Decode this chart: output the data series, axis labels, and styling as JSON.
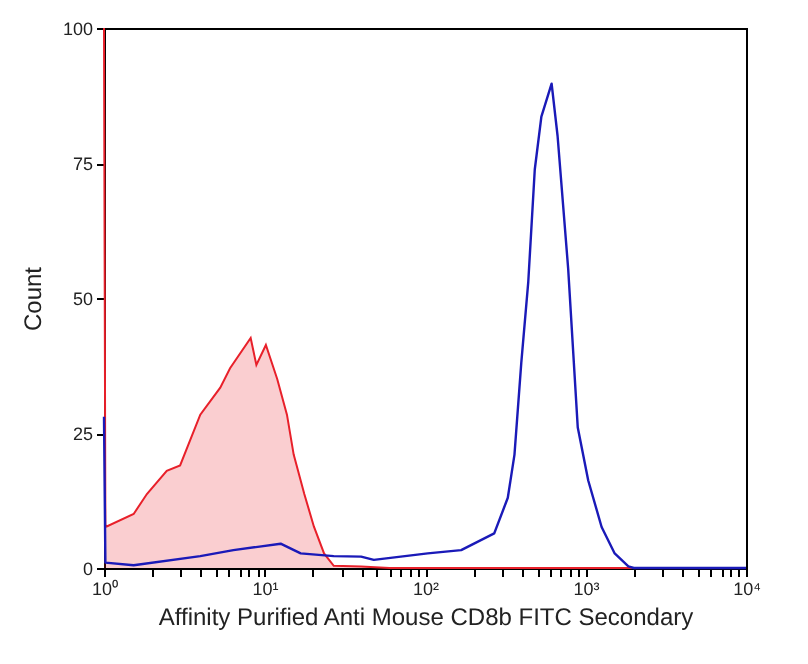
{
  "chart_data": {
    "type": "line",
    "xlabel": "Affinity Purified Anti Mouse CD8b FITC Secondary",
    "ylabel": "Count",
    "log": "x",
    "xlim": [
      1,
      10000
    ],
    "xticks": [
      {
        "value": 1,
        "label": "10⁰"
      },
      {
        "value": 2,
        "label": null
      },
      {
        "value": 3,
        "label": null
      },
      {
        "value": 4,
        "label": null
      },
      {
        "value": 5,
        "label": null
      },
      {
        "value": 6,
        "label": null
      },
      {
        "value": 7,
        "label": null
      },
      {
        "value": 8,
        "label": null
      },
      {
        "value": 9,
        "label": null
      },
      {
        "value": 10,
        "label": "10¹"
      },
      {
        "value": 20,
        "label": null
      },
      {
        "value": 30,
        "label": null
      },
      {
        "value": 40,
        "label": null
      },
      {
        "value": 50,
        "label": null
      },
      {
        "value": 60,
        "label": null
      },
      {
        "value": 70,
        "label": null
      },
      {
        "value": 80,
        "label": null
      },
      {
        "value": 90,
        "label": null
      },
      {
        "value": 100,
        "label": "10²"
      },
      {
        "value": 200,
        "label": null
      },
      {
        "value": 300,
        "label": null
      },
      {
        "value": 400,
        "label": null
      },
      {
        "value": 500,
        "label": null
      },
      {
        "value": 600,
        "label": null
      },
      {
        "value": 700,
        "label": null
      },
      {
        "value": 800,
        "label": null
      },
      {
        "value": 900,
        "label": null
      },
      {
        "value": 1000,
        "label": "10³"
      },
      {
        "value": 2000,
        "label": null
      },
      {
        "value": 3000,
        "label": null
      },
      {
        "value": 4000,
        "label": null
      },
      {
        "value": 5000,
        "label": null
      },
      {
        "value": 6000,
        "label": null
      },
      {
        "value": 7000,
        "label": null
      },
      {
        "value": 8000,
        "label": null
      },
      {
        "value": 9000,
        "label": null
      },
      {
        "value": 10000,
        "label": "10⁴"
      }
    ],
    "ylim": [
      0,
      100
    ],
    "yticks": [
      0,
      25,
      50,
      75,
      100
    ],
    "grid": false,
    "series": [
      {
        "type": "area",
        "color": "#e8202a",
        "x": [
          1,
          1.02,
          1.04,
          1.53,
          1.85,
          2.46,
          2.98,
          3.98,
          5.3,
          6.1,
          8.2,
          8.9,
          10.2,
          12,
          13.8,
          15.2,
          17.7,
          20.3,
          23.5,
          27,
          40,
          60,
          10000
        ],
        "values": [
          100,
          8,
          7.7,
          10,
          13.7,
          18,
          19,
          28.4,
          33.4,
          37,
          42.6,
          37.6,
          41.3,
          35,
          28.4,
          21,
          13.7,
          7.7,
          2.7,
          0.4,
          0.3,
          0,
          0
        ]
      },
      {
        "color": "#1a1ab8",
        "x": [
          1,
          1.02,
          1.53,
          3.98,
          6.4,
          12.6,
          16.8,
          27,
          40,
          48,
          104,
          168,
          270,
          328,
          361,
          398,
          440,
          483,
          531,
          615,
          670,
          780,
          895,
          1040,
          1260,
          1520,
          1850,
          2000,
          10000
        ],
        "values": [
          28,
          1,
          0.5,
          2.2,
          3.3,
          4.5,
          2.7,
          2.2,
          2.1,
          1.5,
          2.7,
          3.3,
          6.4,
          13,
          21,
          38,
          53,
          73.8,
          83.6,
          89.7,
          80,
          55.4,
          26,
          16.2,
          7.6,
          2.7,
          0.3,
          0,
          0
        ]
      }
    ]
  }
}
